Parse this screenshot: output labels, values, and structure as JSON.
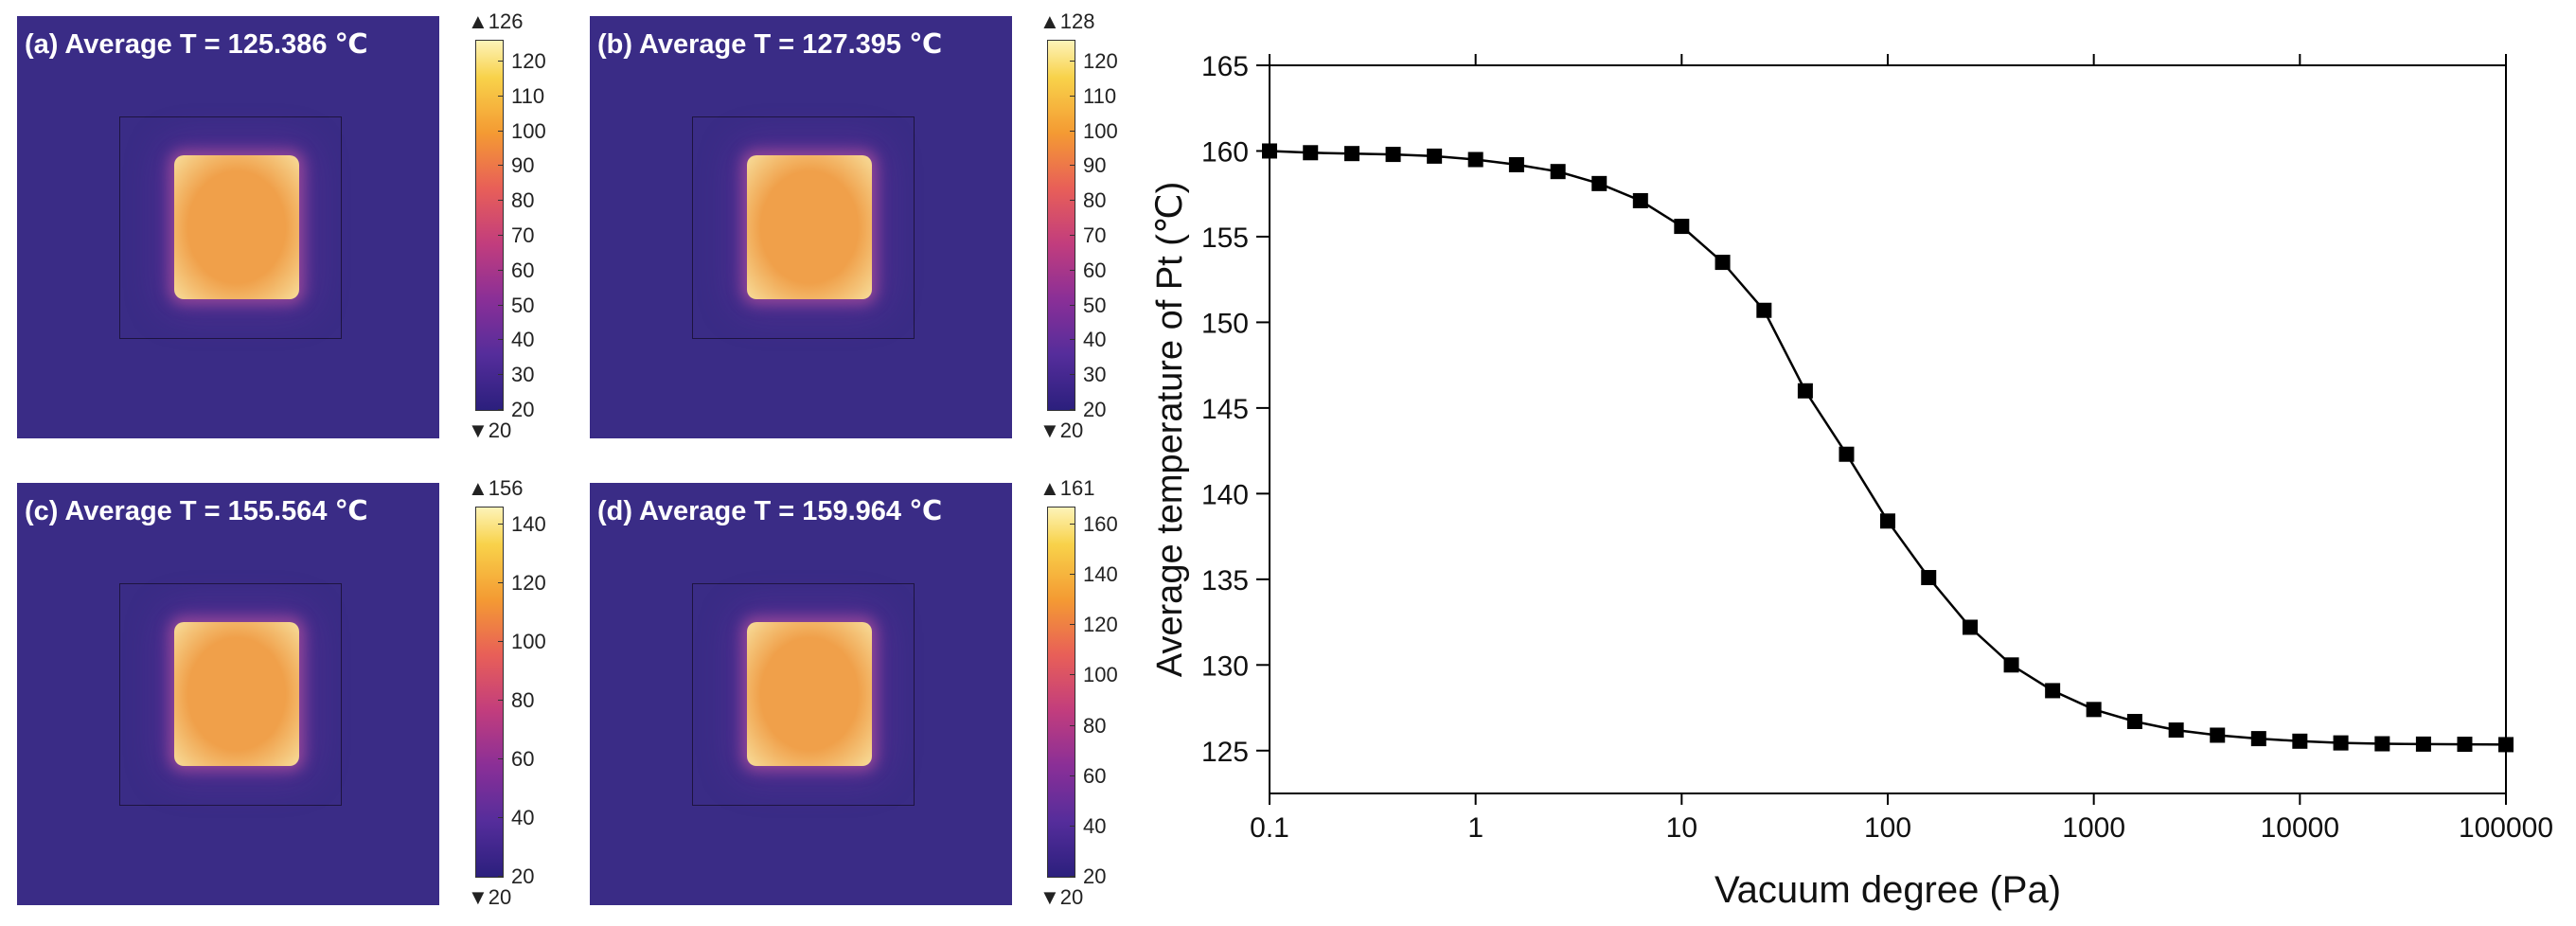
{
  "panels": [
    {
      "label": "(a)  Average T = 125.386 ℃",
      "max": "▲126",
      "min": "▼20",
      "ticks": [
        "120",
        "110",
        "100",
        "90",
        "80",
        "70",
        "60",
        "50",
        "40",
        "30",
        "20"
      ]
    },
    {
      "label": "(b)  Average T = 127.395 ℃",
      "max": "▲128",
      "min": "▼20",
      "ticks": [
        "120",
        "110",
        "100",
        "90",
        "80",
        "70",
        "60",
        "50",
        "40",
        "30",
        "20"
      ]
    },
    {
      "label": "(c)  Average T = 155.564 ℃",
      "max": "▲156",
      "min": "▼20",
      "ticks": [
        "140",
        "120",
        "100",
        "80",
        "60",
        "40",
        "20"
      ]
    },
    {
      "label": "(d)  Average T = 159.964 ℃",
      "max": "▲161",
      "min": "▼20",
      "ticks": [
        "160",
        "140",
        "120",
        "100",
        "80",
        "60",
        "40",
        "20"
      ]
    }
  ],
  "colors": {
    "background": "#3a2c86",
    "outline": "#1e1440",
    "hot_core": "#f0a04a",
    "hot_edge": "#f7dd9a",
    "line": "#000000"
  },
  "chart_data": {
    "type": "line",
    "scale_x": "log",
    "title": "",
    "xlabel": "Vacuum degree (Pa)",
    "ylabel": "Average temperature of Pt (℃)",
    "xlim": [
      0.1,
      100000
    ],
    "ylim": [
      122.5,
      165
    ],
    "x_ticks": [
      0.1,
      1,
      10,
      100,
      1000,
      10000,
      100000
    ],
    "x_tick_labels": [
      "0.1",
      "1",
      "10",
      "100",
      "1000",
      "10000",
      "100000"
    ],
    "y_ticks": [
      125,
      130,
      135,
      140,
      145,
      150,
      155,
      160,
      165
    ],
    "y_tick_labels": [
      "125",
      "130",
      "135",
      "140",
      "145",
      "150",
      "155",
      "160",
      "165"
    ],
    "series": [
      {
        "name": "Average temperature of Pt",
        "marker": "square",
        "x": [
          0.1,
          0.158,
          0.251,
          0.398,
          0.631,
          1,
          1.58,
          2.51,
          3.98,
          6.31,
          10,
          15.8,
          25.1,
          39.8,
          63.1,
          100,
          158,
          251,
          398,
          631,
          1000,
          1580,
          2510,
          3980,
          6310,
          10000,
          15800,
          25100,
          39800,
          63100,
          100000
        ],
        "y": [
          160.0,
          159.9,
          159.85,
          159.8,
          159.7,
          159.5,
          159.2,
          158.8,
          158.1,
          157.1,
          155.6,
          153.5,
          150.7,
          146.0,
          142.3,
          138.4,
          135.1,
          132.2,
          130.0,
          128.5,
          127.4,
          126.7,
          126.2,
          125.9,
          125.7,
          125.55,
          125.45,
          125.4,
          125.38,
          125.37,
          125.35
        ]
      }
    ]
  }
}
